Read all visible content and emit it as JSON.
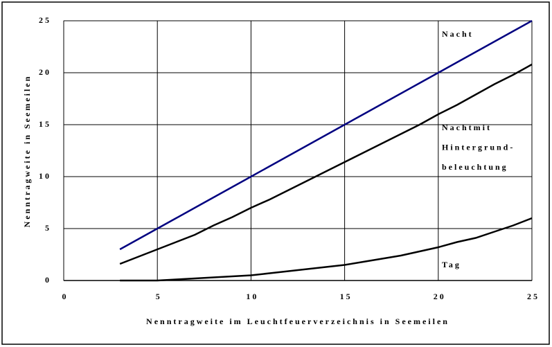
{
  "chart_data": {
    "type": "line",
    "xlabel": "Nenntragweite im Leuchtfeuerverzeichnis in Seemeilen",
    "ylabel": "Nenntragweite in Seemeilen",
    "x": [
      3,
      4,
      5,
      6,
      7,
      8,
      9,
      10,
      11,
      12,
      13,
      14,
      15,
      16,
      17,
      18,
      19,
      20,
      21,
      22,
      23,
      24,
      25
    ],
    "series": [
      {
        "name": [
          "Nacht"
        ],
        "color": "#000080",
        "values": [
          3,
          4,
          5,
          6,
          7,
          8,
          9,
          10,
          11,
          12,
          13,
          14,
          15,
          16,
          17,
          18,
          19,
          20,
          21,
          22,
          23,
          24,
          25
        ]
      },
      {
        "name": [
          "Nachtmit",
          "Hintergrund-",
          "beleuchtung"
        ],
        "color": "#000000",
        "values": [
          1.6,
          2.3,
          3.0,
          3.7,
          4.4,
          5.3,
          6.1,
          7.0,
          7.8,
          8.7,
          9.6,
          10.5,
          11.4,
          12.3,
          13.2,
          14.1,
          15.0,
          16.0,
          16.9,
          17.9,
          18.9,
          19.8,
          20.8
        ]
      },
      {
        "name": [
          "Tag"
        ],
        "color": "#000000",
        "values": [
          0,
          0,
          0,
          0.1,
          0.2,
          0.3,
          0.4,
          0.5,
          0.7,
          0.9,
          1.1,
          1.3,
          1.5,
          1.8,
          2.1,
          2.4,
          2.8,
          3.2,
          3.7,
          4.1,
          4.7,
          5.3,
          6.0
        ]
      }
    ],
    "xlim": [
      0,
      25
    ],
    "xticks": [
      0,
      5,
      10,
      15,
      20,
      25
    ],
    "ylim": [
      0,
      25
    ],
    "yticks": [
      0,
      5,
      10,
      15,
      20,
      25
    ],
    "grid": true
  }
}
